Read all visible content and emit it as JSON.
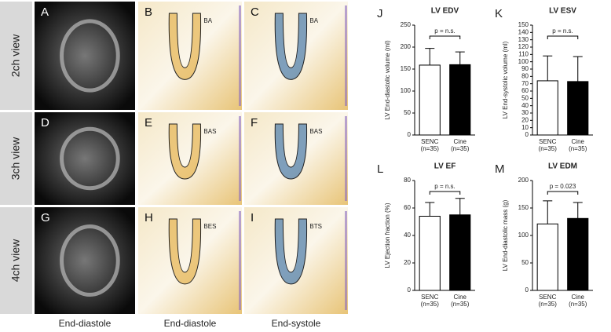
{
  "figure": {
    "rows": [
      "2ch view",
      "3ch view",
      "4ch view"
    ],
    "panels": [
      "A",
      "B",
      "C",
      "D",
      "E",
      "F",
      "G",
      "H",
      "I"
    ],
    "annotations": [
      null,
      "BA",
      "BA",
      null,
      "BAS",
      "BAS",
      null,
      "BES",
      "BTS"
    ],
    "columns": [
      "End-diastole",
      "End-diastole",
      "End-systole"
    ]
  },
  "chart_data": [
    {
      "type": "bar",
      "panel": "J",
      "title": "LV EDV",
      "ylabel": "LV  End-diastolic volume (ml)",
      "categories": [
        "SENC",
        "Cine"
      ],
      "category_notes": [
        "(n=35)",
        "(n=35)"
      ],
      "values": [
        159,
        160
      ],
      "errors": [
        38,
        29
      ],
      "colors": [
        "#ffffff",
        "#000000"
      ],
      "ylim": [
        0,
        250
      ],
      "yticks": [
        0,
        50,
        100,
        150,
        200,
        250
      ],
      "annotation": "p = n.s."
    },
    {
      "type": "bar",
      "panel": "K",
      "title": "LV ESV",
      "ylabel": "LV  End-systolic volume (ml)",
      "categories": [
        "SENC",
        "Cine"
      ],
      "category_notes": [
        "(n=35)",
        "(n=35)"
      ],
      "values": [
        74,
        73
      ],
      "errors": [
        34,
        34
      ],
      "colors": [
        "#ffffff",
        "#000000"
      ],
      "ylim": [
        0,
        150
      ],
      "yticks": [
        0,
        10,
        20,
        30,
        40,
        50,
        60,
        70,
        80,
        90,
        100,
        110,
        120,
        130,
        140,
        150
      ],
      "annotation": "p = n.s."
    },
    {
      "type": "bar",
      "panel": "L",
      "title": "LV EF",
      "ylabel": "LV  Ejection fraction (%)",
      "categories": [
        "SENC",
        "Cine"
      ],
      "category_notes": [
        "(n=35)",
        "(n=35)"
      ],
      "values": [
        54,
        55
      ],
      "errors": [
        10,
        12
      ],
      "colors": [
        "#ffffff",
        "#000000"
      ],
      "ylim": [
        0,
        80
      ],
      "yticks": [
        0,
        20,
        40,
        60,
        80
      ],
      "annotation": "p = n.s."
    },
    {
      "type": "bar",
      "panel": "M",
      "title": "LV EDM",
      "ylabel": "LV  End-diastolic mass (g)",
      "categories": [
        "SENC",
        "Cine"
      ],
      "category_notes": [
        "(n=35)",
        "(n=35)"
      ],
      "values": [
        121,
        131
      ],
      "errors": [
        42,
        29
      ],
      "colors": [
        "#ffffff",
        "#000000"
      ],
      "ylim": [
        0,
        200
      ],
      "yticks": [
        0,
        50,
        100,
        150,
        200
      ],
      "annotation": "p = 0.023"
    }
  ]
}
